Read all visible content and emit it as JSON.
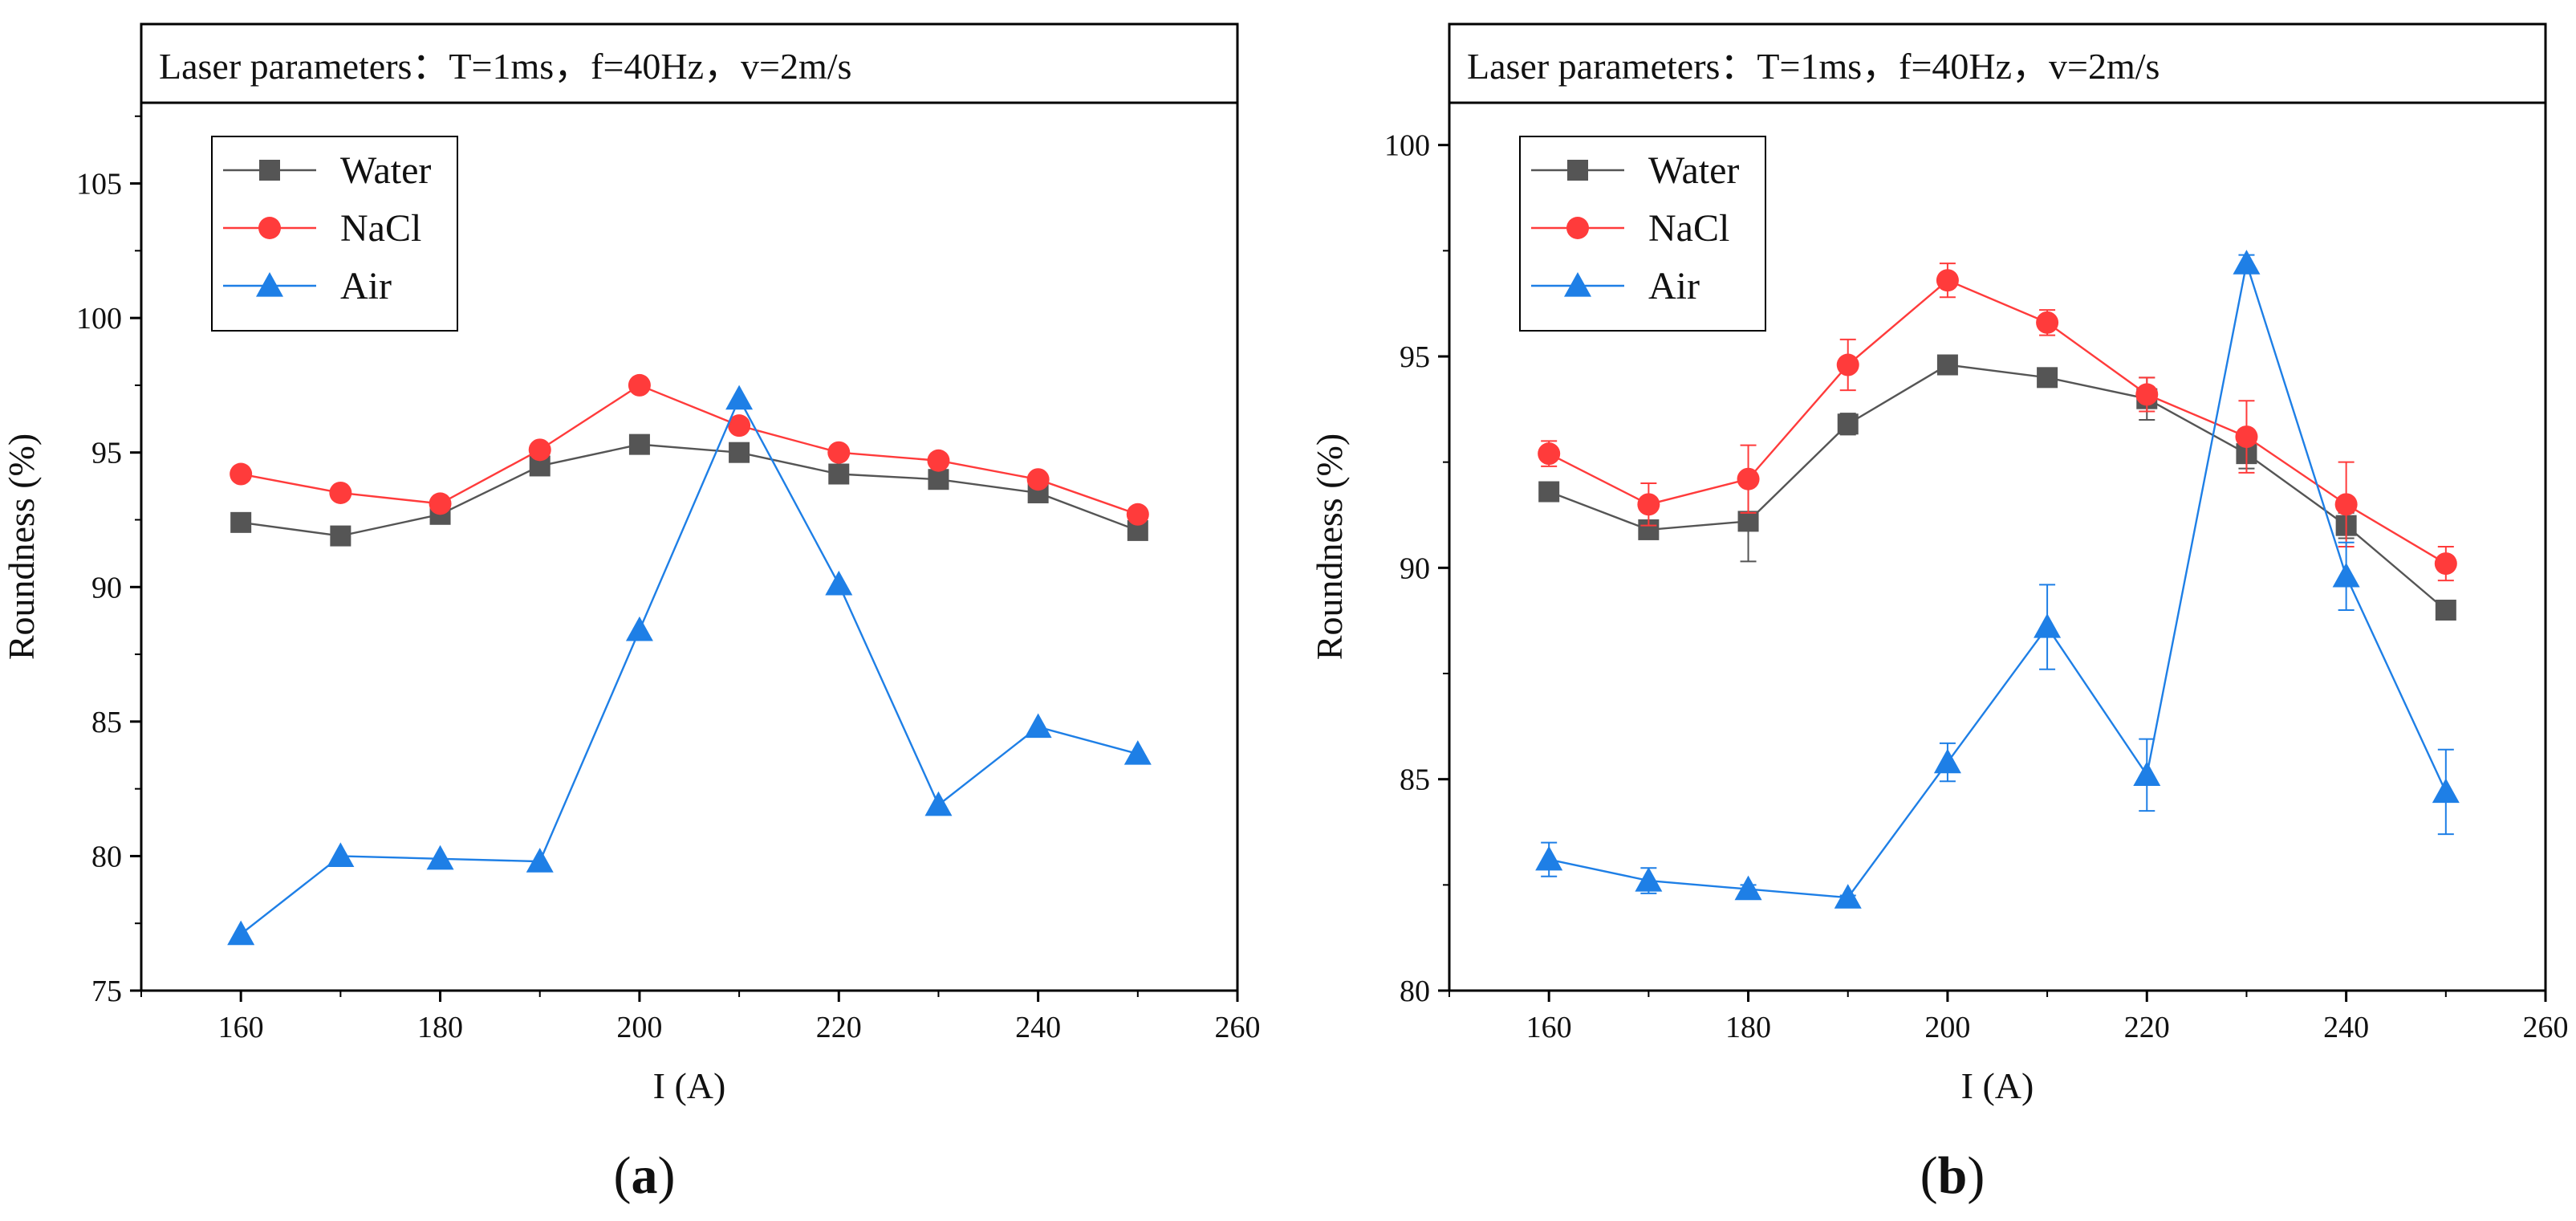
{
  "figure": {
    "panels": [
      {
        "letter_open": "(",
        "letter": "a",
        "letter_close": ")"
      },
      {
        "letter_open": "(",
        "letter": "b",
        "letter_close": ")"
      }
    ]
  },
  "chart_data": [
    {
      "type": "line",
      "panel_label": "(a)",
      "header": "Laser parameters：T=1ms，f=40Hz，v=2m/s",
      "xlabel": "I (A)",
      "ylabel": "Roundness (%)",
      "xlim": [
        150,
        260
      ],
      "ylim": [
        75,
        108
      ],
      "xticks": [
        160,
        180,
        200,
        220,
        240,
        260
      ],
      "yticks": [
        75,
        80,
        85,
        90,
        95,
        100,
        105
      ],
      "legend_position": "top-left",
      "x": [
        160,
        170,
        180,
        190,
        200,
        210,
        220,
        230,
        240,
        250
      ],
      "series": [
        {
          "name": "Water",
          "color": "#555555",
          "marker": "square",
          "values": [
            92.4,
            91.9,
            92.7,
            94.5,
            95.3,
            95.0,
            94.2,
            94.0,
            93.5,
            92.1
          ]
        },
        {
          "name": "NaCl",
          "color": "#ff3b3b",
          "marker": "circle",
          "values": [
            94.2,
            93.5,
            93.1,
            95.1,
            97.5,
            96.0,
            95.0,
            94.7,
            94.0,
            92.7
          ]
        },
        {
          "name": "Air",
          "color": "#1e7fe6",
          "marker": "triangle",
          "values": [
            77.1,
            80.0,
            79.9,
            79.8,
            88.4,
            97.0,
            90.1,
            81.9,
            84.8,
            83.8
          ]
        }
      ]
    },
    {
      "type": "line",
      "panel_label": "(b)",
      "header": "Laser parameters：T=1ms，f=40Hz，v=2m/s",
      "xlabel": "I (A)",
      "ylabel": "Roundness (%)",
      "xlim": [
        150,
        260
      ],
      "ylim": [
        80,
        101
      ],
      "xticks": [
        160,
        180,
        200,
        220,
        240,
        260
      ],
      "yticks": [
        80,
        85,
        90,
        95,
        100
      ],
      "legend_position": "top-left",
      "x": [
        160,
        170,
        180,
        190,
        200,
        210,
        220,
        230,
        240,
        250
      ],
      "series": [
        {
          "name": "Water",
          "color": "#555555",
          "marker": "square",
          "values": [
            91.8,
            90.9,
            91.1,
            93.4,
            94.8,
            94.5,
            94.0,
            92.7,
            91.0,
            89.0
          ],
          "errors": [
            0.2,
            0.1,
            0.95,
            0.25,
            0.2,
            0.1,
            0.5,
            0.35,
            0.3,
            0.1
          ]
        },
        {
          "name": "NaCl",
          "color": "#ff3b3b",
          "marker": "circle",
          "values": [
            92.7,
            91.5,
            92.1,
            94.8,
            96.8,
            95.8,
            94.1,
            93.1,
            91.5,
            90.1
          ],
          "errors": [
            0.3,
            0.5,
            0.8,
            0.6,
            0.4,
            0.3,
            0.4,
            0.85,
            1.0,
            0.4
          ]
        },
        {
          "name": "Air",
          "color": "#1e7fe6",
          "marker": "triangle",
          "values": [
            83.1,
            82.6,
            82.4,
            82.2,
            85.4,
            88.6,
            85.1,
            97.2,
            89.8,
            84.7
          ],
          "errors": [
            0.4,
            0.3,
            0.1,
            0.05,
            0.45,
            1.0,
            0.85,
            0.2,
            0.8,
            1.0
          ]
        }
      ]
    }
  ]
}
